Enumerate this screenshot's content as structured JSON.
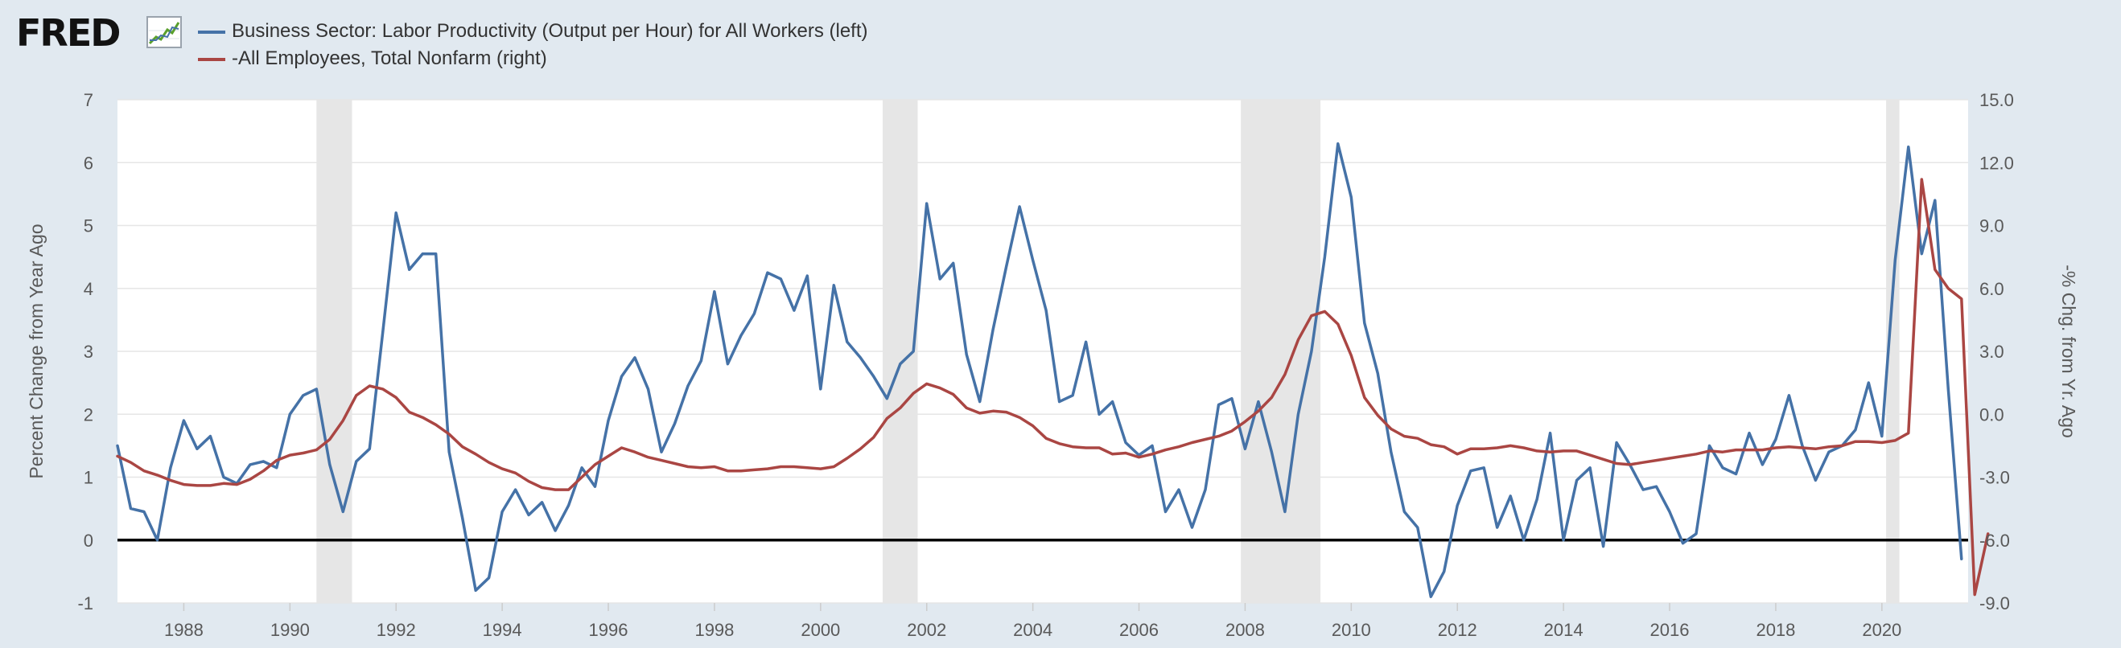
{
  "logo": {
    "text": "FRED",
    "icon": "line-chart-icon"
  },
  "legend": [
    {
      "label": "Business Sector: Labor Productivity (Output per Hour) for All Workers (left)",
      "color": "#4572a7"
    },
    {
      "label": "-All Employees, Total Nonfarm (right)",
      "color": "#aa4643"
    }
  ],
  "chart_data": {
    "type": "line",
    "title": "",
    "ylabel_left": "Percent Change from Year Ago",
    "ylabel_right": "-% Chg. from Yr. Ago",
    "xlim": [
      1986.75,
      2021.625
    ],
    "ylim_left": [
      -1,
      7
    ],
    "ylim_right": [
      -9,
      15
    ],
    "x_ticks": [
      "1988",
      "1990",
      "1992",
      "1994",
      "1996",
      "1998",
      "2000",
      "2002",
      "2004",
      "2006",
      "2008",
      "2010",
      "2012",
      "2014",
      "2016",
      "2018",
      "2020"
    ],
    "y_ticks_left": [
      "-1",
      "0",
      "1",
      "2",
      "3",
      "4",
      "5",
      "6",
      "7"
    ],
    "y_ticks_right": [
      "-9.0",
      "-6.0",
      "-3.0",
      "0.0",
      "3.0",
      "6.0",
      "9.0",
      "12.0",
      "15.0"
    ],
    "grid": true,
    "zero_line": true,
    "recessions": [
      [
        1990.5,
        1991.17
      ],
      [
        2001.17,
        2001.83
      ],
      [
        2007.92,
        2009.42
      ],
      [
        2020.08,
        2020.33
      ]
    ],
    "series": [
      {
        "name": "Business Sector: Labor Productivity (Output per Hour) for All Workers (left)",
        "axis": "left",
        "color": "#4572a7",
        "start": 1986.75,
        "step": 0.25,
        "values": [
          1.5,
          0.5,
          0.45,
          0.0,
          1.15,
          1.9,
          1.45,
          1.65,
          1.0,
          0.9,
          1.2,
          1.25,
          1.15,
          2.0,
          2.3,
          2.4,
          1.2,
          0.45,
          1.25,
          1.45,
          3.3,
          5.2,
          4.3,
          4.55,
          4.55,
          1.4,
          0.35,
          -0.8,
          -0.6,
          0.45,
          0.8,
          0.4,
          0.6,
          0.15,
          0.55,
          1.15,
          0.85,
          1.9,
          2.6,
          2.9,
          2.4,
          1.4,
          1.85,
          2.45,
          2.85,
          3.95,
          2.8,
          3.25,
          3.6,
          4.25,
          4.15,
          3.65,
          4.2,
          2.4,
          4.05,
          3.15,
          2.9,
          2.6,
          2.25,
          2.8,
          3.0,
          5.35,
          4.15,
          4.4,
          2.95,
          2.2,
          3.35,
          4.35,
          5.3,
          4.45,
          3.65,
          2.2,
          2.3,
          3.15,
          2.0,
          2.2,
          1.55,
          1.35,
          1.5,
          0.45,
          0.8,
          0.2,
          0.8,
          2.15,
          2.25,
          1.45,
          2.2,
          1.4,
          0.45,
          2.0,
          3.0,
          4.5,
          6.3,
          5.45,
          3.45,
          2.65,
          1.4,
          0.45,
          0.2,
          -0.9,
          -0.5,
          0.55,
          1.1,
          1.15,
          0.2,
          0.7,
          0.0,
          0.65,
          1.7,
          0.0,
          0.95,
          1.15,
          -0.1,
          1.55,
          1.2,
          0.8,
          0.85,
          0.45,
          -0.05,
          0.1,
          1.5,
          1.15,
          1.05,
          1.7,
          1.2,
          1.6,
          2.3,
          1.5,
          0.95,
          1.4,
          1.5,
          1.75,
          2.5,
          1.65,
          4.45,
          6.25,
          4.55,
          5.4,
          2.4,
          -0.3
        ]
      },
      {
        "name": "-All Employees, Total Nonfarm (right)",
        "axis": "right",
        "color": "#aa4643",
        "start": 1986.75,
        "step": 0.25,
        "values": [
          -2.0,
          -2.3,
          -2.7,
          -2.9,
          -3.15,
          -3.35,
          -3.4,
          -3.4,
          -3.3,
          -3.35,
          -3.1,
          -2.7,
          -2.2,
          -1.95,
          -1.85,
          -1.7,
          -1.2,
          -0.3,
          0.9,
          1.35,
          1.2,
          0.8,
          0.1,
          -0.15,
          -0.5,
          -0.95,
          -1.55,
          -1.9,
          -2.3,
          -2.6,
          -2.8,
          -3.2,
          -3.5,
          -3.6,
          -3.6,
          -3.0,
          -2.4,
          -2.0,
          -1.6,
          -1.8,
          -2.05,
          -2.2,
          -2.35,
          -2.5,
          -2.55,
          -2.5,
          -2.7,
          -2.7,
          -2.65,
          -2.6,
          -2.5,
          -2.5,
          -2.55,
          -2.6,
          -2.5,
          -2.1,
          -1.65,
          -1.1,
          -0.2,
          0.3,
          1.0,
          1.45,
          1.25,
          0.95,
          0.3,
          0.05,
          0.15,
          0.1,
          -0.15,
          -0.55,
          -1.15,
          -1.4,
          -1.55,
          -1.6,
          -1.6,
          -1.9,
          -1.85,
          -2.05,
          -1.9,
          -1.7,
          -1.55,
          -1.35,
          -1.2,
          -1.05,
          -0.8,
          -0.35,
          0.15,
          0.8,
          1.9,
          3.55,
          4.7,
          4.9,
          4.3,
          2.8,
          0.8,
          -0.05,
          -0.7,
          -1.05,
          -1.15,
          -1.45,
          -1.55,
          -1.9,
          -1.65,
          -1.65,
          -1.6,
          -1.5,
          -1.6,
          -1.75,
          -1.8,
          -1.75,
          -1.75,
          -1.95,
          -2.15,
          -2.35,
          -2.4,
          -2.3,
          -2.2,
          -2.1,
          -2.0,
          -1.9,
          -1.75,
          -1.8,
          -1.7,
          -1.7,
          -1.7,
          -1.6,
          -1.55,
          -1.6,
          -1.65,
          -1.55,
          -1.5,
          -1.3,
          -1.3,
          -1.35,
          -1.25,
          -0.9,
          11.2,
          6.9,
          6.0,
          5.5,
          -8.6,
          -5.7
        ]
      }
    ]
  }
}
